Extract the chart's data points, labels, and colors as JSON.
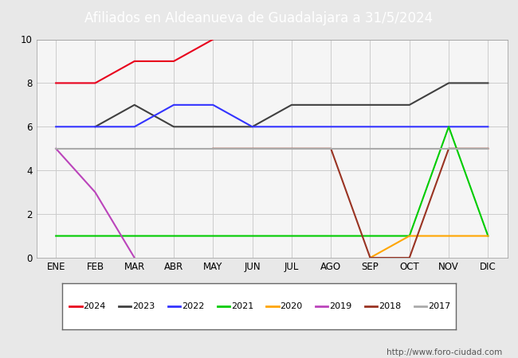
{
  "title": "Afiliados en Aldeanueva de Guadalajara a 31/5/2024",
  "title_bg_color": "#4e7cc4",
  "title_text_color": "white",
  "months": [
    "ENE",
    "FEB",
    "MAR",
    "ABR",
    "MAY",
    "JUN",
    "JUL",
    "AGO",
    "SEP",
    "OCT",
    "NOV",
    "DIC"
  ],
  "watermark": "http://www.foro-ciudad.com",
  "series": {
    "2024": {
      "color": "#e8001c",
      "linewidth": 1.5,
      "data": [
        8,
        8,
        9,
        9,
        10,
        null,
        null,
        null,
        null,
        null,
        null,
        null
      ]
    },
    "2023": {
      "color": "#404040",
      "linewidth": 1.5,
      "data": [
        null,
        6,
        7,
        6,
        6,
        6,
        7,
        7,
        7,
        7,
        8,
        8
      ]
    },
    "2022": {
      "color": "#3333ff",
      "linewidth": 1.5,
      "data": [
        6,
        6,
        6,
        7,
        7,
        6,
        6,
        6,
        6,
        6,
        6,
        6
      ]
    },
    "2021": {
      "color": "#00cc00",
      "linewidth": 1.5,
      "data": [
        1,
        1,
        1,
        1,
        1,
        1,
        1,
        1,
        1,
        1,
        6,
        1
      ]
    },
    "2020": {
      "color": "#ffa500",
      "linewidth": 1.5,
      "data": [
        null,
        null,
        null,
        null,
        null,
        null,
        null,
        null,
        0,
        1,
        1,
        1
      ]
    },
    "2019": {
      "color": "#bb44bb",
      "linewidth": 1.5,
      "data": [
        5,
        3,
        0,
        null,
        null,
        null,
        null,
        null,
        null,
        null,
        null,
        null
      ]
    },
    "2018": {
      "color": "#993322",
      "linewidth": 1.5,
      "data": [
        null,
        null,
        null,
        null,
        5,
        5,
        5,
        5,
        0,
        0,
        5,
        5
      ]
    },
    "2017": {
      "color": "#aaaaaa",
      "linewidth": 1.5,
      "data": [
        5,
        5,
        5,
        5,
        5,
        5,
        5,
        5,
        5,
        5,
        5,
        5
      ]
    }
  },
  "legend_order": [
    "2024",
    "2023",
    "2022",
    "2021",
    "2020",
    "2019",
    "2018",
    "2017"
  ],
  "ylim": [
    0,
    10
  ],
  "yticks": [
    0,
    2,
    4,
    6,
    8,
    10
  ],
  "fig_bg_color": "#e8e8e8",
  "plot_bg_color": "#f5f5f5",
  "grid_color": "#cccccc",
  "grid_linewidth": 0.7
}
